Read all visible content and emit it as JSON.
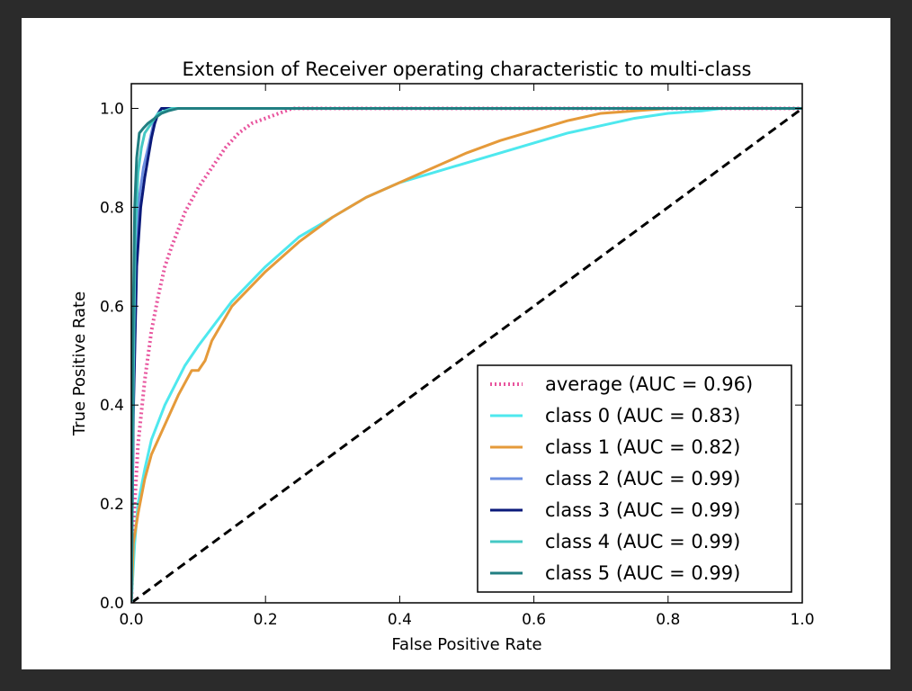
{
  "chart_data": {
    "type": "line",
    "title": "Extension of Receiver operating characteristic to multi-class",
    "xlabel": "False Positive Rate",
    "ylabel": "True Positive Rate",
    "xlim": [
      0.0,
      1.0
    ],
    "ylim": [
      0.0,
      1.05
    ],
    "x_ticks": [
      "0.0",
      "0.2",
      "0.4",
      "0.6",
      "0.8",
      "1.0"
    ],
    "y_ticks": [
      "0.0",
      "0.2",
      "0.4",
      "0.6",
      "0.8",
      "1.0"
    ],
    "x_tick_values": [
      0.0,
      0.2,
      0.4,
      0.6,
      0.8,
      1.0
    ],
    "y_tick_values": [
      0.0,
      0.2,
      0.4,
      0.6,
      0.8,
      1.0
    ],
    "grid": false,
    "legend_position": "lower-right",
    "series": [
      {
        "name": "average (AUC = 0.96)",
        "color": "#e8559e",
        "style": "dotted",
        "x": [
          0,
          0.005,
          0.01,
          0.02,
          0.03,
          0.04,
          0.05,
          0.06,
          0.08,
          0.1,
          0.12,
          0.14,
          0.16,
          0.18,
          0.2,
          0.22,
          0.24,
          1.0
        ],
        "y": [
          0,
          0.2,
          0.32,
          0.45,
          0.55,
          0.62,
          0.68,
          0.72,
          0.79,
          0.84,
          0.88,
          0.92,
          0.95,
          0.97,
          0.98,
          0.99,
          1.0,
          1.0
        ]
      },
      {
        "name": "class 0 (AUC = 0.83)",
        "color": "#4ee8ee",
        "style": "solid",
        "x": [
          0,
          0.005,
          0.01,
          0.02,
          0.03,
          0.05,
          0.08,
          0.1,
          0.15,
          0.2,
          0.25,
          0.3,
          0.35,
          0.4,
          0.45,
          0.5,
          0.55,
          0.6,
          0.65,
          0.7,
          0.75,
          0.8,
          0.85,
          0.88,
          1.0
        ],
        "y": [
          0,
          0.12,
          0.2,
          0.27,
          0.33,
          0.4,
          0.48,
          0.52,
          0.61,
          0.68,
          0.74,
          0.78,
          0.82,
          0.85,
          0.87,
          0.89,
          0.91,
          0.93,
          0.95,
          0.965,
          0.98,
          0.99,
          0.995,
          1.0,
          1.0
        ]
      },
      {
        "name": "class 1 (AUC = 0.82)",
        "color": "#e59a3a",
        "style": "solid",
        "x": [
          0,
          0.003,
          0.01,
          0.02,
          0.03,
          0.05,
          0.07,
          0.09,
          0.1,
          0.11,
          0.12,
          0.15,
          0.2,
          0.25,
          0.3,
          0.35,
          0.4,
          0.45,
          0.5,
          0.55,
          0.6,
          0.65,
          0.7,
          0.75,
          0.8,
          0.85,
          1.0
        ],
        "y": [
          0,
          0.12,
          0.18,
          0.25,
          0.3,
          0.36,
          0.42,
          0.47,
          0.47,
          0.49,
          0.53,
          0.6,
          0.67,
          0.73,
          0.78,
          0.82,
          0.85,
          0.88,
          0.91,
          0.935,
          0.955,
          0.975,
          0.99,
          0.995,
          1.0,
          1.0,
          1.0
        ]
      },
      {
        "name": "class 2 (AUC = 0.99)",
        "color": "#6b8ee0",
        "style": "solid",
        "x": [
          0,
          0.003,
          0.008,
          0.012,
          0.018,
          0.025,
          0.03,
          0.035,
          0.04,
          0.045,
          1.0
        ],
        "y": [
          0,
          0.4,
          0.7,
          0.82,
          0.88,
          0.92,
          0.95,
          0.98,
          0.99,
          1.0,
          1.0
        ]
      },
      {
        "name": "class 3 (AUC = 0.99)",
        "color": "#0b1a7a",
        "style": "solid",
        "x": [
          0,
          0.003,
          0.008,
          0.014,
          0.02,
          0.025,
          0.03,
          0.035,
          0.04,
          0.045,
          1.0
        ],
        "y": [
          0,
          0.38,
          0.68,
          0.8,
          0.86,
          0.9,
          0.94,
          0.97,
          0.99,
          1.0,
          1.0
        ]
      },
      {
        "name": "class 4 (AUC = 0.99)",
        "color": "#45c8c4",
        "style": "solid",
        "x": [
          0,
          0.003,
          0.006,
          0.01,
          0.015,
          0.02,
          0.03,
          0.04,
          0.05,
          0.06,
          1.0
        ],
        "y": [
          0,
          0.45,
          0.75,
          0.87,
          0.92,
          0.95,
          0.97,
          0.99,
          0.995,
          1.0,
          1.0
        ]
      },
      {
        "name": "class 5 (AUC = 0.99)",
        "color": "#217f82",
        "style": "solid",
        "x": [
          0,
          0.002,
          0.005,
          0.008,
          0.012,
          0.018,
          0.025,
          0.035,
          0.045,
          0.055,
          0.07,
          1.0
        ],
        "y": [
          0,
          0.5,
          0.8,
          0.9,
          0.95,
          0.96,
          0.97,
          0.98,
          0.99,
          0.995,
          1.0,
          1.0
        ]
      }
    ],
    "reference_line": {
      "color": "#000000",
      "style": "dashed",
      "x": [
        0,
        1
      ],
      "y": [
        0,
        1
      ]
    }
  }
}
